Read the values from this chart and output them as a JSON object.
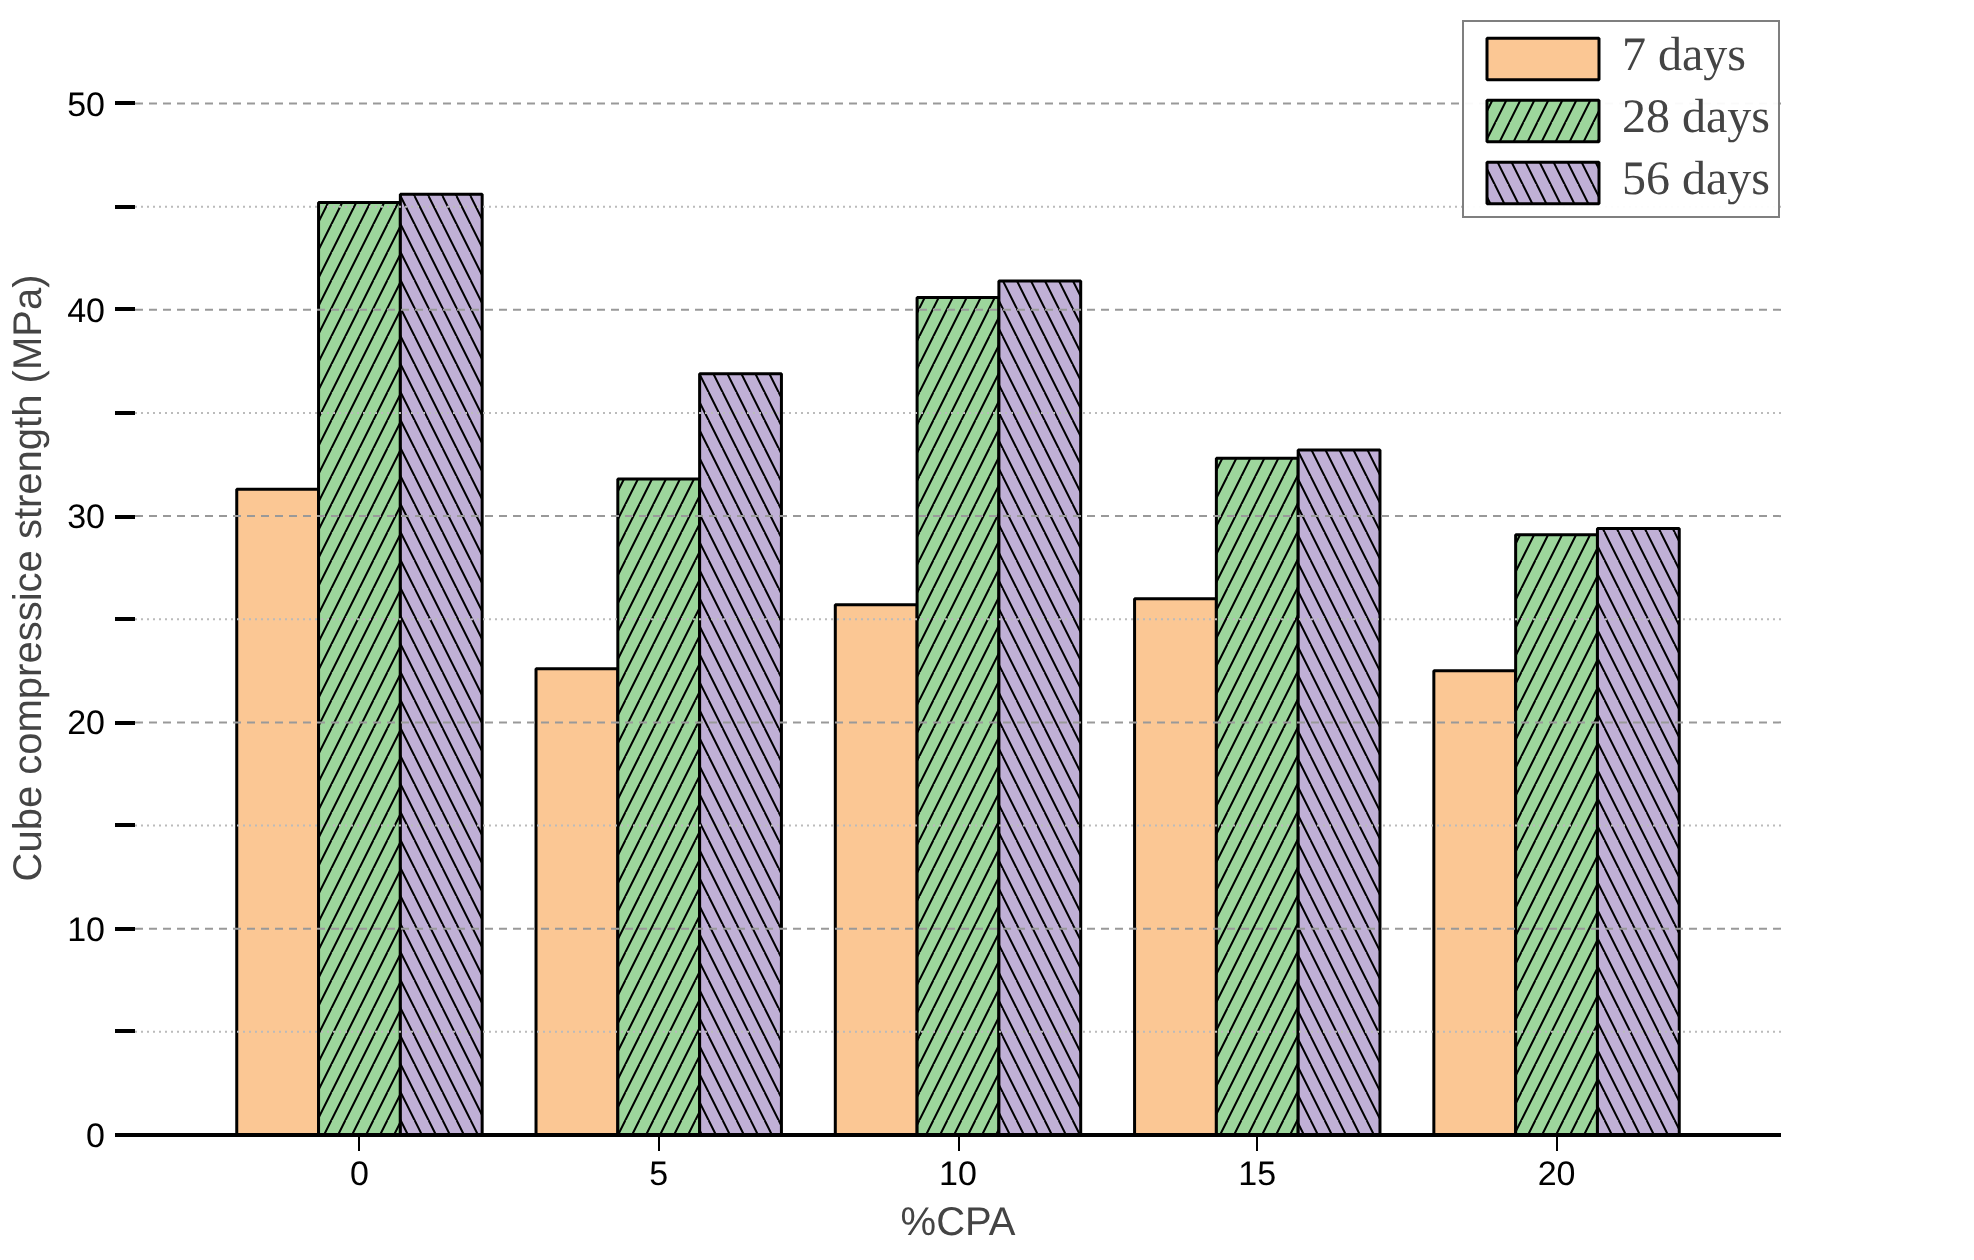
{
  "chart_data": {
    "type": "bar",
    "xlabel": "%CPA",
    "ylabel": "Cube compressice strength (MPa)",
    "categories": [
      "0",
      "5",
      "10",
      "15",
      "20"
    ],
    "series": [
      {
        "name": "7 days",
        "color": "#fbc794",
        "values": [
          31.3,
          22.6,
          25.7,
          26.0,
          22.5
        ]
      },
      {
        "name": "28 days",
        "color": "#9dd69c",
        "values": [
          45.2,
          31.8,
          40.6,
          32.8,
          29.1
        ]
      },
      {
        "name": "56 days",
        "color": "#c0b0d6",
        "values": [
          45.6,
          36.9,
          41.4,
          33.2,
          29.4
        ]
      }
    ],
    "ylim": [
      0,
      54
    ],
    "yticks": [
      0,
      {
        "value": 5,
        "label": null
      },
      10,
      {
        "value": 15,
        "label": null
      },
      20,
      {
        "value": 25,
        "label": null
      },
      30,
      {
        "value": 35,
        "label": null
      },
      40,
      {
        "value": 45,
        "label": null
      },
      50
    ],
    "grid": "y",
    "legend": "top right"
  }
}
